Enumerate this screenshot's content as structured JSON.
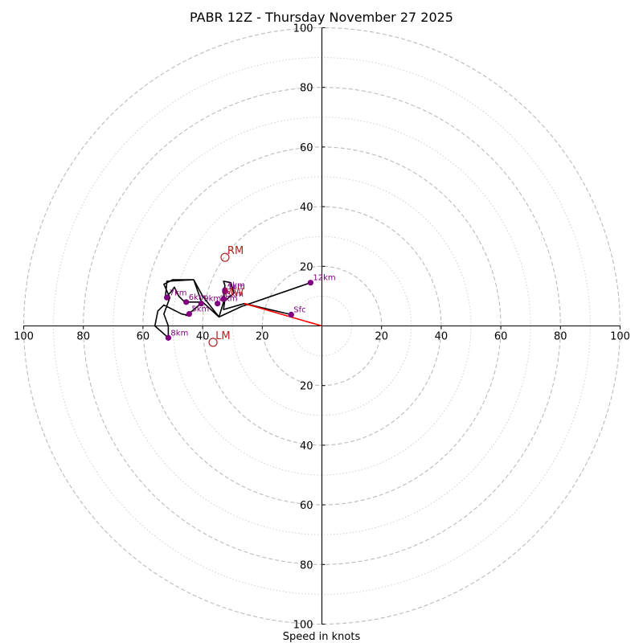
{
  "chart_data": {
    "type": "scatter",
    "subtype": "hodograph",
    "title": "PABR 12Z - Thursday November 27 2025",
    "xlabel": "Speed in knots",
    "ylabel": "",
    "xlim": [
      -100,
      100
    ],
    "ylim": [
      -100,
      100
    ],
    "units": "knots",
    "major_rings": [
      20,
      40,
      60,
      80,
      100
    ],
    "minor_rings": [
      10,
      30,
      50,
      70,
      90
    ],
    "axis_ticks": [
      {
        "value": -100,
        "label": "100"
      },
      {
        "value": -80,
        "label": "80"
      },
      {
        "value": -60,
        "label": "60"
      },
      {
        "value": -40,
        "label": "40"
      },
      {
        "value": -20,
        "label": "20"
      },
      {
        "value": 20,
        "label": "20"
      },
      {
        "value": 40,
        "label": "40"
      },
      {
        "value": 60,
        "label": "60"
      },
      {
        "value": 80,
        "label": "80"
      },
      {
        "value": 100,
        "label": "100"
      }
    ],
    "hodograph_trace": [
      [
        -10.3,
        3.8
      ],
      [
        -26,
        7.5
      ],
      [
        -33,
        5.5
      ],
      [
        -32.5,
        9
      ],
      [
        -33,
        11
      ],
      [
        -32.5,
        13.5
      ],
      [
        -33,
        15
      ],
      [
        -30.5,
        14.5
      ],
      [
        -29.5,
        11
      ],
      [
        -33,
        8
      ],
      [
        -34.5,
        3
      ],
      [
        -40.5,
        8.5
      ],
      [
        -43,
        15.5
      ],
      [
        -52,
        15
      ],
      [
        -52,
        14.5
      ],
      [
        -52.5,
        9.5
      ],
      [
        -50.5,
        11.5
      ],
      [
        -49.5,
        13
      ],
      [
        -48,
        10
      ],
      [
        -46,
        8
      ],
      [
        -40,
        8
      ],
      [
        -43.5,
        5
      ],
      [
        -45.5,
        3.5
      ],
      [
        -44,
        4.5
      ],
      [
        -44.5,
        3.5
      ],
      [
        -47,
        4
      ],
      [
        -53,
        7
      ],
      [
        -55,
        5
      ],
      [
        -56,
        0
      ],
      [
        -51.5,
        -4
      ],
      [
        -51.5,
        0
      ],
      [
        -53,
        4
      ],
      [
        -51,
        9.5
      ],
      [
        -53,
        14
      ],
      [
        -50,
        15.5
      ],
      [
        -43,
        15.5
      ],
      [
        -40,
        10
      ],
      [
        -34.5,
        3
      ],
      [
        -27,
        6.5
      ],
      [
        -3.8,
        14.5
      ]
    ],
    "series": [
      {
        "name": "Sfc",
        "point": [
          -10.3,
          3.8
        ]
      },
      {
        "name": "1km",
        "point": [
          -32.5,
          11.5
        ]
      },
      {
        "name": "2km",
        "point": [
          -35,
          7.5
        ]
      },
      {
        "name": "3km",
        "point": [
          -33,
          9
        ]
      },
      {
        "name": "4km",
        "point": [
          -32.5,
          12
        ]
      },
      {
        "name": "5km",
        "point": [
          -44.5,
          4
        ]
      },
      {
        "name": "6km",
        "point": [
          -45.5,
          8
        ]
      },
      {
        "name": "7km",
        "point": [
          -52,
          9.5
        ]
      },
      {
        "name": "8km",
        "point": [
          -51.5,
          -4
        ]
      },
      {
        "name": "9km",
        "point": [
          -40.5,
          7.5
        ]
      },
      {
        "name": "12km",
        "point": [
          -3.8,
          14.5
        ]
      }
    ],
    "storm_motion": [
      {
        "name": "RM",
        "point": [
          -32.5,
          23
        ]
      },
      {
        "name": "LM",
        "point": [
          -36.5,
          -5.5
        ]
      },
      {
        "name": "MW",
        "point": [
          -33.5,
          9
        ]
      }
    ],
    "shear_vector": {
      "from": [
        0,
        0
      ],
      "to": [
        -26,
        7.5
      ]
    },
    "colors": {
      "trace": "#000000",
      "points": "#800080",
      "storm_motion": "#b22222",
      "shear": "#ff0000",
      "rings": "#bbbbbb",
      "axes": "#000000"
    }
  }
}
